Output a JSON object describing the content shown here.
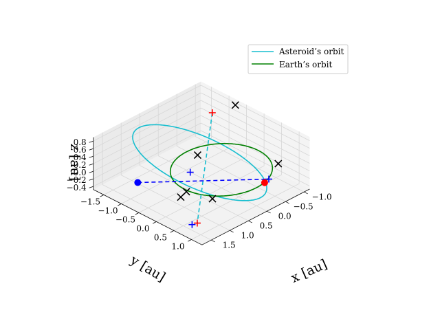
{
  "chart_data": {
    "type": "line3d",
    "title": "",
    "axes": {
      "x": {
        "label": "x [au]",
        "ticks": [
          -1.5,
          -1.0,
          -0.5,
          0.0,
          0.5,
          1.0
        ],
        "tick_labels": [
          "−1.5",
          "−1.0",
          "−0.5",
          "0.0",
          "0.5",
          "1.0"
        ],
        "range": [
          -1.8,
          1.3
        ]
      },
      "y": {
        "label": "y [au]",
        "ticks": [
          -1.0,
          -0.5,
          0.0,
          0.5,
          1.0,
          1.5
        ],
        "tick_labels": [
          "−1.0",
          "−0.5",
          "0.0",
          "0.5",
          "1.0",
          "1.5"
        ],
        "range": [
          -1.15,
          1.75
        ]
      },
      "z": {
        "label": "z [au]",
        "ticks": [
          -0.4,
          -0.2,
          0.0,
          0.2,
          0.4,
          0.6,
          0.8
        ],
        "tick_labels": [
          "−0.4",
          "−0.2",
          "0.0",
          "0.2",
          "0.4",
          "0.6",
          "0.8"
        ],
        "range": [
          -0.48,
          0.9
        ]
      }
    },
    "grid": true,
    "legend": {
      "location": "upper right"
    },
    "series": [
      {
        "name": "Asteroid’s orbit",
        "color": "#17becf",
        "kind": "orbit",
        "center": [
          -0.3,
          0.3,
          0.2
        ],
        "u": [
          -0.7,
          1.08,
          0.67
        ],
        "v": [
          1.25,
          0.7,
          0.05
        ]
      },
      {
        "name": "Earth’s orbit",
        "color": "#008000",
        "kind": "orbit",
        "center": [
          0,
          0,
          0
        ],
        "u": [
          1,
          0,
          0
        ],
        "v": [
          0,
          1,
          0
        ]
      }
    ],
    "lines": [
      {
        "from": [
          -1.0,
          -0.7,
          0.68
        ],
        "to": [
          0.9,
          1.5,
          -0.22
        ],
        "color": "#17becf",
        "style": "dashed"
      },
      {
        "from": [
          -0.85,
          1.45,
          0.0
        ],
        "to": [
          0.94,
          -0.39,
          0.0
        ],
        "color": "#0000ff",
        "style": "dashed"
      }
    ],
    "markers": [
      {
        "symbol": "x",
        "color": "#000000",
        "points": [
          [
            -0.83,
            -1.16,
            0.73
          ],
          [
            0.06,
            1.0,
            -0.04
          ],
          [
            -0.11,
            0.99,
            -0.27
          ],
          [
            -0.72,
            -0.04,
            0.03
          ],
          [
            0.5,
            -1.06,
            -0.14
          ],
          [
            0.37,
            0.59,
            -0.29
          ]
        ]
      },
      {
        "symbol": "+",
        "color": "#ff0000",
        "points": [
          [
            -1.0,
            -0.7,
            0.68
          ],
          [
            0.9,
            1.5,
            -0.22
          ]
        ]
      },
      {
        "symbol": "+",
        "color": "#0000ff",
        "points": [
          [
            -0.38,
            0.48,
            0.0
          ],
          [
            0.7,
            1.45,
            -0.38
          ],
          [
            0.94,
            -0.39,
            0.0
          ]
        ]
      },
      {
        "symbol": "o",
        "color": "#0000ff",
        "points": [
          [
            -0.85,
            1.45,
            0.0
          ]
        ]
      },
      {
        "symbol": "o",
        "color": "#ff0000",
        "points": [
          [
            0.98,
            -0.24,
            0.0
          ]
        ]
      }
    ]
  }
}
